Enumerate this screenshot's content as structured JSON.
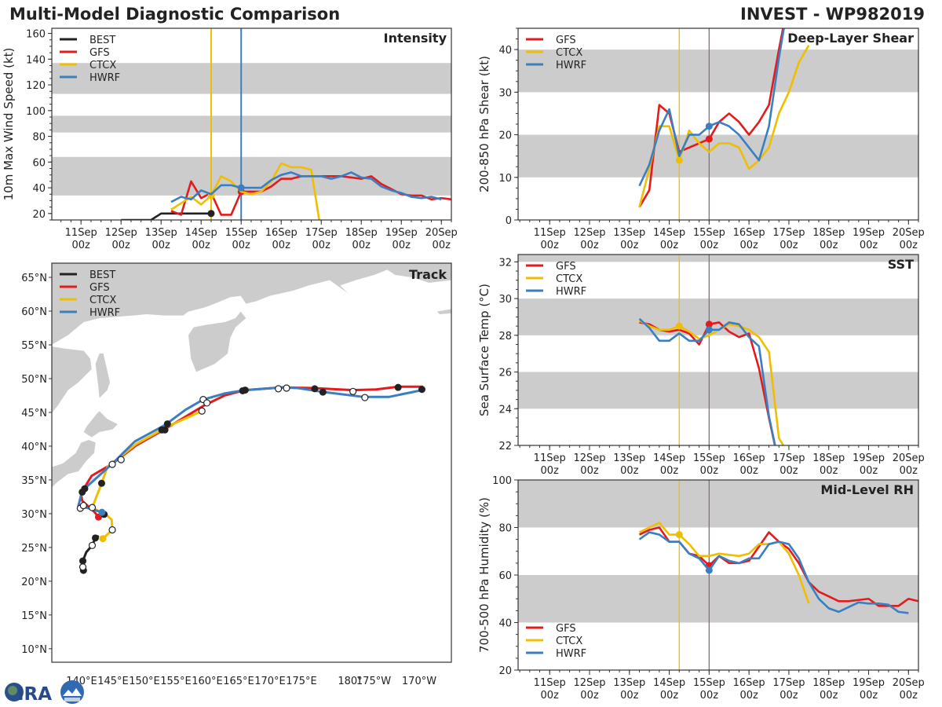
{
  "header": {
    "title": "Multi-Model Diagnostic Comparison",
    "storm": "INVEST - WP982019"
  },
  "logo": {
    "text": "CIRA",
    "secondary": "RAMMB"
  },
  "colors": {
    "BEST": "#222222",
    "GFS": "#e41a1c",
    "CTCX": "#f0be00",
    "HWRF": "#3a7fc1",
    "band": "#cccccc",
    "init_line_right": "#8e6a8a"
  },
  "models": [
    {
      "name": "BEST",
      "init": null
    },
    {
      "name": "GFS",
      "init": "2019-09-15T00"
    },
    {
      "name": "CTCX",
      "init": "2019-09-14T06"
    },
    {
      "name": "HWRF",
      "init": "2019-09-15T00"
    }
  ],
  "chart_data": [
    {
      "id": "intensity",
      "type": "line",
      "title": "Intensity",
      "ylabel": "10m Max Wind Speed (kt)",
      "xlim": [
        "2019-09-10T06:30",
        "2019-09-20T06"
      ],
      "ylim": [
        15,
        164
      ],
      "yticks": [
        20,
        40,
        60,
        80,
        100,
        120,
        140,
        160
      ],
      "xticks": [
        "11Sep|00z",
        "12Sep|00z",
        "13Sep|00z",
        "14Sep|00z",
        "15Sep|00z",
        "16Sep|00z",
        "17Sep|00z",
        "18Sep|00z",
        "19Sep|00z",
        "20Sep|00z"
      ],
      "bands": [
        [
          34,
          64
        ],
        [
          83,
          96
        ],
        [
          113,
          137
        ]
      ],
      "vlines": [
        {
          "t": "2019-09-14T06",
          "color": "CTCX"
        },
        {
          "t": "2019-09-15T00",
          "color": "HWRF"
        }
      ],
      "legend": [
        "BEST",
        "GFS",
        "CTCX",
        "HWRF"
      ],
      "legend_position": "top-left",
      "series": [
        {
          "name": "BEST",
          "start": "2019-09-12T00",
          "step_hours": 6,
          "values": [
            15,
            15,
            15,
            15,
            20,
            20,
            20,
            20,
            20,
            20
          ]
        },
        {
          "name": "GFS",
          "start": "2019-09-13T06",
          "step_hours": 6,
          "values": [
            22,
            19,
            45,
            32,
            36,
            19,
            19,
            37,
            37,
            37,
            41,
            47,
            47,
            49,
            49,
            49,
            49,
            49,
            48,
            47,
            49,
            43,
            39,
            35,
            34,
            34,
            31,
            32,
            31
          ]
        },
        {
          "name": "CTCX",
          "start": "2019-09-13T06",
          "step_hours": 6,
          "values": [
            23,
            28,
            33,
            27,
            34,
            49,
            45,
            37,
            35,
            37,
            45,
            59,
            56,
            56,
            54,
            5
          ]
        },
        {
          "name": "HWRF",
          "start": "2019-09-13T06",
          "step_hours": 6,
          "values": [
            29,
            33,
            31,
            38,
            35,
            42,
            42,
            40,
            40,
            40,
            46,
            50,
            52,
            49,
            49,
            49,
            47,
            49,
            52,
            48,
            47,
            41,
            38,
            36,
            33,
            32,
            33,
            31
          ]
        }
      ]
    },
    {
      "id": "shear",
      "type": "line",
      "title": "Deep-Layer Shear",
      "ylabel": "200-850 hPa Shear (kt)",
      "xlim": [
        "2019-09-10T05",
        "2019-09-20T06"
      ],
      "ylim": [
        0,
        45
      ],
      "yticks": [
        0,
        10,
        20,
        30,
        40
      ],
      "xticks": [
        "11Sep|00z",
        "12Sep|00z",
        "13Sep|00z",
        "14Sep|00z",
        "15Sep|00z",
        "16Sep|00z",
        "17Sep|00z",
        "18Sep|00z",
        "19Sep|00z",
        "20Sep|00z"
      ],
      "bands": [
        [
          10,
          20
        ],
        [
          30,
          40
        ]
      ],
      "vlines": [
        {
          "t": "2019-09-14T06",
          "color": "CTCX"
        },
        {
          "t": "2019-09-15T00",
          "color": "init_line_right"
        }
      ],
      "legend": [
        "GFS",
        "CTCX",
        "HWRF"
      ],
      "legend_position": "top-left",
      "series": [
        {
          "name": "GFS",
          "start": "2019-09-13T06",
          "step_hours": 6,
          "values": [
            3,
            7,
            27,
            25,
            16,
            17,
            18,
            19,
            23,
            25,
            23,
            20,
            23,
            27,
            40,
            52
          ]
        },
        {
          "name": "CTCX",
          "start": "2019-09-13T06",
          "step_hours": 6,
          "values": [
            3,
            12,
            22,
            22,
            14,
            21,
            18,
            16,
            18,
            18,
            17,
            12,
            14,
            17,
            25,
            30,
            37,
            41
          ]
        },
        {
          "name": "HWRF",
          "start": "2019-09-13T06",
          "step_hours": 6,
          "values": [
            8,
            13,
            21,
            26,
            15,
            20,
            20,
            22,
            23,
            22,
            20,
            17,
            14,
            22,
            38,
            52
          ]
        }
      ]
    },
    {
      "id": "sst",
      "type": "line",
      "title": "SST",
      "ylabel": "Sea Surface Temp (°C)",
      "xlim": [
        "2019-09-10T05",
        "2019-09-20T06"
      ],
      "ylim": [
        22,
        32.4
      ],
      "yticks": [
        22,
        24,
        26,
        28,
        30,
        32
      ],
      "xticks": [
        "11Sep|00z",
        "12Sep|00z",
        "13Sep|00z",
        "14Sep|00z",
        "15Sep|00z",
        "16Sep|00z",
        "17Sep|00z",
        "18Sep|00z",
        "19Sep|00z",
        "20Sep|00z"
      ],
      "bands": [
        [
          24,
          26
        ],
        [
          28,
          30
        ],
        [
          32,
          34
        ]
      ],
      "vlines": [
        {
          "t": "2019-09-14T06",
          "color": "CTCX"
        },
        {
          "t": "2019-09-15T00",
          "color": "init_line_right"
        }
      ],
      "legend": [
        "GFS",
        "CTCX",
        "HWRF"
      ],
      "legend_position": "top-left",
      "series": [
        {
          "name": "GFS",
          "start": "2019-09-13T06",
          "step_hours": 6,
          "values": [
            28.7,
            28.6,
            28.3,
            28.2,
            28.3,
            28.1,
            27.5,
            28.6,
            28.7,
            28.2,
            27.9,
            28.1,
            26.2,
            23.5,
            21.0
          ]
        },
        {
          "name": "CTCX",
          "start": "2019-09-13T06",
          "step_hours": 6,
          "values": [
            28.8,
            28.5,
            28.3,
            28.3,
            28.5,
            28.2,
            27.8,
            28.0,
            28.3,
            28.6,
            28.5,
            28.3,
            27.9,
            27.1,
            22.4,
            21.5
          ]
        },
        {
          "name": "HWRF",
          "start": "2019-09-13T06",
          "step_hours": 6,
          "values": [
            28.9,
            28.4,
            27.7,
            27.7,
            28.1,
            27.7,
            27.7,
            28.3,
            28.3,
            28.7,
            28.6,
            27.9,
            27.4,
            23.6,
            21.0
          ]
        }
      ]
    },
    {
      "id": "rh",
      "type": "line",
      "title": "Mid-Level RH",
      "ylabel": "700-500 hPa Humidity (%)",
      "xlim": [
        "2019-09-10T05",
        "2019-09-20T06"
      ],
      "ylim": [
        20,
        100
      ],
      "yticks": [
        20,
        40,
        60,
        80,
        100
      ],
      "xticks": [
        "11Sep|00z",
        "12Sep|00z",
        "13Sep|00z",
        "14Sep|00z",
        "15Sep|00z",
        "16Sep|00z",
        "17Sep|00z",
        "18Sep|00z",
        "19Sep|00z",
        "20Sep|00z"
      ],
      "bands": [
        [
          40,
          60
        ],
        [
          80,
          100
        ]
      ],
      "vlines": [
        {
          "t": "2019-09-14T06",
          "color": "CTCX"
        },
        {
          "t": "2019-09-15T00",
          "color": "init_line_right"
        }
      ],
      "legend": [
        "GFS",
        "CTCX",
        "HWRF"
      ],
      "legend_position": "bottom-left",
      "series": [
        {
          "name": "GFS",
          "start": "2019-09-13T06",
          "step_hours": 6,
          "values": [
            77,
            79,
            80,
            74,
            74,
            69,
            68,
            64,
            68,
            65,
            65,
            66,
            72,
            78,
            74,
            71,
            65,
            57,
            53,
            51,
            49,
            49,
            49.5,
            50,
            47,
            47,
            47,
            50,
            49
          ]
        },
        {
          "name": "CTCX",
          "start": "2019-09-13T06",
          "step_hours": 6,
          "values": [
            78,
            80,
            82,
            77,
            77,
            73,
            68,
            68,
            69,
            68.5,
            68,
            69,
            73,
            73,
            74,
            69,
            60,
            48
          ]
        },
        {
          "name": "HWRF",
          "start": "2019-09-13T06",
          "step_hours": 6,
          "values": [
            75,
            78,
            77,
            74,
            74,
            69,
            67,
            62,
            68,
            66,
            65,
            67,
            67,
            73,
            74,
            73,
            67,
            57,
            50,
            46,
            44.5,
            46.5,
            48.5,
            48,
            48,
            47.5,
            44.5,
            44
          ]
        }
      ]
    },
    {
      "id": "track",
      "type": "line",
      "title": "Track",
      "lon_range": [
        135.25,
        199
      ],
      "lat_range": [
        8,
        67.1
      ],
      "lat_ticks": [
        "65°N",
        "60°N",
        "55°N",
        "50°N",
        "45°N",
        "40°N",
        "35°N",
        "30°N",
        "25°N",
        "20°N",
        "15°N",
        "10°N"
      ],
      "lat_tick_values": [
        65,
        60,
        55,
        50,
        45,
        40,
        35,
        30,
        25,
        20,
        15,
        10
      ],
      "lon_ticks": [
        "140°E",
        "145°E",
        "150°E",
        "155°E",
        "160°E",
        "165°E",
        "170°E",
        "175°E",
        "180°",
        "175°W",
        "170°W"
      ],
      "legend": [
        "BEST",
        "GFS",
        "CTCX",
        "HWRF"
      ],
      "legend_position": "top-left",
      "series": [
        {
          "name": "BEST",
          "points": [
            [
              140.3,
              21.6
            ],
            [
              140.2,
              22.1
            ],
            [
              140.2,
              23.0
            ],
            [
              140.75,
              24.3
            ],
            [
              141.7,
              25.3
            ],
            [
              142.2,
              26.4
            ],
            [
              142.75,
              26.7
            ]
          ]
        },
        {
          "name": "GFS",
          "points": [
            [
              142.7,
              29.5
            ],
            [
              142.0,
              30.3
            ],
            [
              140.1,
              31.9
            ],
            [
              139.9,
              33.0
            ],
            [
              141.6,
              35.6
            ],
            [
              144.9,
              37.4
            ],
            [
              148.7,
              40.1
            ],
            [
              153.25,
              42.5
            ],
            [
              159.5,
              46.0
            ],
            [
              162.8,
              47.5
            ],
            [
              166.1,
              48.3
            ],
            [
              172.0,
              48.7
            ],
            [
              177.0,
              48.6
            ],
            [
              183.25,
              48.3
            ],
            [
              187.0,
              48.4
            ],
            [
              190.5,
              48.8
            ],
            [
              194.5,
              48.8
            ]
          ]
        },
        {
          "name": "CTCX",
          "points": [
            [
              143.4,
              26.3
            ],
            [
              144.9,
              27.6
            ],
            [
              144.8,
              29.1
            ],
            [
              144.1,
              29.7
            ],
            [
              141.7,
              30.9
            ],
            [
              143.2,
              34.5
            ],
            [
              144.1,
              36.9
            ],
            [
              148.7,
              40.3
            ],
            [
              153.7,
              42.9
            ],
            [
              159.2,
              45.2
            ]
          ]
        },
        {
          "name": "HWRF",
          "points": [
            [
              143.25,
              30.2
            ],
            [
              140.75,
              30.9
            ],
            [
              139.5,
              31.2
            ],
            [
              140.1,
              33.4
            ],
            [
              141.2,
              34.3
            ],
            [
              144.9,
              37.4
            ],
            [
              148.5,
              40.7
            ],
            [
              153.25,
              43.1
            ],
            [
              156.6,
              45.4
            ],
            [
              159.4,
              46.9
            ],
            [
              162.8,
              47.8
            ],
            [
              166.1,
              48.3
            ],
            [
              172.0,
              48.7
            ],
            [
              174.5,
              48.6
            ],
            [
              178.7,
              48.0
            ],
            [
              184.9,
              47.3
            ],
            [
              189.1,
              47.3
            ],
            [
              194.3,
              48.3
            ]
          ]
        }
      ],
      "markers": [
        {
          "type": "filled",
          "pt": [
            140.3,
            21.6
          ]
        },
        {
          "type": "open",
          "pt": [
            140.2,
            22.1
          ]
        },
        {
          "type": "filled",
          "pt": [
            140.2,
            23.0
          ]
        },
        {
          "type": "open",
          "pt": [
            141.7,
            25.3
          ]
        },
        {
          "type": "filled",
          "pt": [
            142.2,
            26.4
          ]
        },
        {
          "type": "CTCX",
          "pt": [
            143.4,
            26.3
          ]
        },
        {
          "type": "open",
          "pt": [
            144.9,
            27.6
          ]
        },
        {
          "type": "GFS",
          "pt": [
            142.7,
            29.5
          ]
        },
        {
          "type": "filled",
          "pt": [
            143.6,
            29.9
          ]
        },
        {
          "type": "HWRF",
          "pt": [
            143.25,
            30.2
          ]
        },
        {
          "type": "open",
          "pt": [
            139.8,
            30.8
          ]
        },
        {
          "type": "open",
          "pt": [
            140.3,
            31.2
          ]
        },
        {
          "type": "open",
          "pt": [
            141.7,
            30.9
          ]
        },
        {
          "type": "filled",
          "pt": [
            140.1,
            33.2
          ]
        },
        {
          "type": "filled",
          "pt": [
            140.5,
            33.7
          ]
        },
        {
          "type": "filled",
          "pt": [
            143.2,
            34.5
          ]
        },
        {
          "type": "open",
          "pt": [
            144.9,
            37.3
          ]
        },
        {
          "type": "open",
          "pt": [
            146.3,
            38.0
          ]
        },
        {
          "type": "filled",
          "pt": [
            152.8,
            42.4
          ]
        },
        {
          "type": "filled",
          "pt": [
            153.3,
            42.4
          ]
        },
        {
          "type": "filled",
          "pt": [
            153.7,
            43.3
          ]
        },
        {
          "type": "open",
          "pt": [
            159.2,
            45.2
          ]
        },
        {
          "type": "open",
          "pt": [
            159.4,
            46.9
          ]
        },
        {
          "type": "open",
          "pt": [
            160.0,
            46.4
          ]
        },
        {
          "type": "filled",
          "pt": [
            165.7,
            48.2
          ]
        },
        {
          "type": "filled",
          "pt": [
            166.1,
            48.3
          ]
        },
        {
          "type": "open",
          "pt": [
            171.4,
            48.5
          ]
        },
        {
          "type": "open",
          "pt": [
            172.7,
            48.6
          ]
        },
        {
          "type": "filled",
          "pt": [
            177.2,
            48.5
          ]
        },
        {
          "type": "filled",
          "pt": [
            178.5,
            48.0
          ]
        },
        {
          "type": "open",
          "pt": [
            183.3,
            48.1
          ]
        },
        {
          "type": "open",
          "pt": [
            185.2,
            47.2
          ]
        },
        {
          "type": "filled",
          "pt": [
            190.5,
            48.7
          ]
        },
        {
          "type": "filled",
          "pt": [
            194.3,
            48.4
          ]
        }
      ]
    }
  ]
}
